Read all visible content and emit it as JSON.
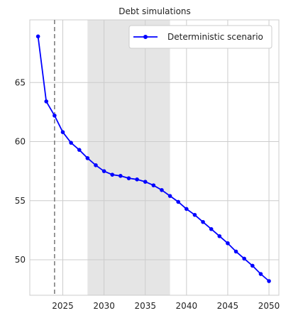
{
  "chart_data": {
    "type": "line",
    "title": "Debt simulations",
    "xlabel": "",
    "ylabel": "",
    "xlim": [
      2021.0,
      2051.2
    ],
    "ylim": [
      47.0,
      70.3
    ],
    "xticks": [
      2025,
      2030,
      2035,
      2040,
      2045,
      2050
    ],
    "yticks": [
      50,
      55,
      60,
      65
    ],
    "grid": true,
    "legend_position": "top-right",
    "shaded_region": {
      "x_start": 2028,
      "x_end": 2038,
      "color": "#e5e5e5"
    },
    "vertical_line": {
      "x": 2024,
      "style": "dashed",
      "color": "#7f7f7f"
    },
    "series": [
      {
        "name": "Deterministic scenario",
        "color": "#0000ff",
        "marker": "circle",
        "x": [
          2022,
          2023,
          2024,
          2025,
          2026,
          2027,
          2028,
          2029,
          2030,
          2031,
          2032,
          2033,
          2034,
          2035,
          2036,
          2037,
          2038,
          2039,
          2040,
          2041,
          2042,
          2043,
          2044,
          2045,
          2046,
          2047,
          2048,
          2049,
          2050
        ],
        "values": [
          68.9,
          63.4,
          62.2,
          60.8,
          59.9,
          59.3,
          58.6,
          58.0,
          57.5,
          57.2,
          57.1,
          56.9,
          56.8,
          56.6,
          56.3,
          55.9,
          55.4,
          54.9,
          54.3,
          53.8,
          53.2,
          52.6,
          52.0,
          51.4,
          50.7,
          50.1,
          49.5,
          48.8,
          48.2
        ]
      }
    ]
  }
}
